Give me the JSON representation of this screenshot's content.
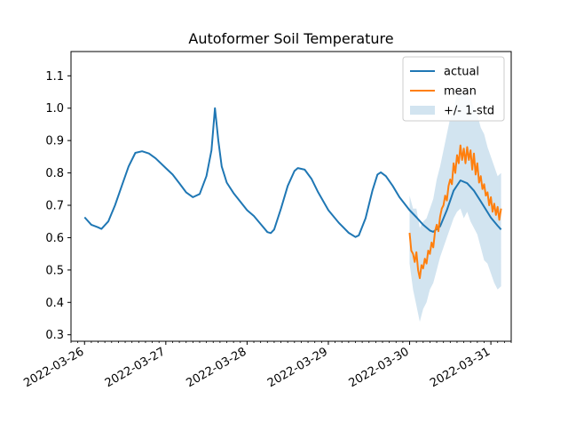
{
  "chart_data": {
    "type": "line",
    "title": "Autoformer Soil Temperature",
    "xlabel": "",
    "ylabel": "",
    "x_axis_type": "date",
    "xlim": [
      "2022-03-25T20:00",
      "2022-03-31T06:00"
    ],
    "ylim": [
      0.28,
      1.175
    ],
    "x_tick_labels": [
      "2022-03-26",
      "2022-03-27",
      "2022-03-28",
      "2022-03-29",
      "2022-03-30",
      "2022-03-31"
    ],
    "y_tick_labels": [
      "0.3",
      "0.4",
      "0.5",
      "0.6",
      "0.7",
      "0.8",
      "0.9",
      "1.0",
      "1.1"
    ],
    "y_ticks": [
      0.3,
      0.4,
      0.5,
      0.6,
      0.7,
      0.8,
      0.9,
      1.0,
      1.1
    ],
    "grid": false,
    "legend_position": "top-right",
    "series": [
      {
        "name": "actual",
        "color": "#1f77b4",
        "points": [
          [
            "2022-03-26T00:00",
            0.663
          ],
          [
            "2022-03-26T02:00",
            0.64
          ],
          [
            "2022-03-26T04:00",
            0.632
          ],
          [
            "2022-03-26T05:00",
            0.627
          ],
          [
            "2022-03-26T07:00",
            0.65
          ],
          [
            "2022-03-26T09:00",
            0.7
          ],
          [
            "2022-03-26T11:00",
            0.76
          ],
          [
            "2022-03-26T13:00",
            0.82
          ],
          [
            "2022-03-26T15:00",
            0.862
          ],
          [
            "2022-03-26T17:00",
            0.867
          ],
          [
            "2022-03-26T19:00",
            0.86
          ],
          [
            "2022-03-26T21:00",
            0.845
          ],
          [
            "2022-03-27T00:00",
            0.815
          ],
          [
            "2022-03-27T02:00",
            0.795
          ],
          [
            "2022-03-27T04:00",
            0.768
          ],
          [
            "2022-03-27T06:00",
            0.74
          ],
          [
            "2022-03-27T08:00",
            0.725
          ],
          [
            "2022-03-27T10:00",
            0.735
          ],
          [
            "2022-03-27T12:00",
            0.79
          ],
          [
            "2022-03-27T13:30",
            0.87
          ],
          [
            "2022-03-27T14:30",
            1.0
          ],
          [
            "2022-03-27T15:30",
            0.9
          ],
          [
            "2022-03-27T16:30",
            0.82
          ],
          [
            "2022-03-27T18:00",
            0.77
          ],
          [
            "2022-03-27T20:00",
            0.738
          ],
          [
            "2022-03-28T00:00",
            0.685
          ],
          [
            "2022-03-28T02:00",
            0.667
          ],
          [
            "2022-03-28T04:00",
            0.642
          ],
          [
            "2022-03-28T06:00",
            0.617
          ],
          [
            "2022-03-28T07:00",
            0.614
          ],
          [
            "2022-03-28T08:00",
            0.625
          ],
          [
            "2022-03-28T10:00",
            0.69
          ],
          [
            "2022-03-28T12:00",
            0.76
          ],
          [
            "2022-03-28T14:00",
            0.806
          ],
          [
            "2022-03-28T15:00",
            0.815
          ],
          [
            "2022-03-28T17:00",
            0.81
          ],
          [
            "2022-03-28T19:00",
            0.782
          ],
          [
            "2022-03-28T21:00",
            0.74
          ],
          [
            "2022-03-29T00:00",
            0.685
          ],
          [
            "2022-03-29T03:00",
            0.647
          ],
          [
            "2022-03-29T06:00",
            0.615
          ],
          [
            "2022-03-29T08:00",
            0.602
          ],
          [
            "2022-03-29T09:00",
            0.607
          ],
          [
            "2022-03-29T11:00",
            0.66
          ],
          [
            "2022-03-29T13:00",
            0.745
          ],
          [
            "2022-03-29T14:30",
            0.795
          ],
          [
            "2022-03-29T15:30",
            0.802
          ],
          [
            "2022-03-29T17:00",
            0.79
          ],
          [
            "2022-03-29T19:00",
            0.76
          ],
          [
            "2022-03-29T21:00",
            0.725
          ],
          [
            "2022-03-30T00:00",
            0.685
          ],
          [
            "2022-03-30T02:00",
            0.663
          ],
          [
            "2022-03-30T04:00",
            0.64
          ],
          [
            "2022-03-30T06:00",
            0.622
          ],
          [
            "2022-03-30T07:00",
            0.618
          ],
          [
            "2022-03-30T09:00",
            0.635
          ],
          [
            "2022-03-30T11:00",
            0.685
          ],
          [
            "2022-03-30T13:00",
            0.745
          ],
          [
            "2022-03-30T15:00",
            0.777
          ],
          [
            "2022-03-30T17:00",
            0.768
          ],
          [
            "2022-03-30T19:00",
            0.745
          ],
          [
            "2022-03-30T21:00",
            0.712
          ],
          [
            "2022-03-31T00:00",
            0.662
          ],
          [
            "2022-03-31T02:00",
            0.637
          ],
          [
            "2022-03-31T03:00",
            0.625
          ]
        ]
      },
      {
        "name": "mean",
        "color": "#ff7f0e",
        "points": [
          [
            "2022-03-30T00:00",
            0.615
          ],
          [
            "2022-03-30T00:30",
            0.56
          ],
          [
            "2022-03-30T01:00",
            0.55
          ],
          [
            "2022-03-30T01:30",
            0.525
          ],
          [
            "2022-03-30T02:00",
            0.555
          ],
          [
            "2022-03-30T02:30",
            0.5
          ],
          [
            "2022-03-30T03:00",
            0.475
          ],
          [
            "2022-03-30T03:30",
            0.515
          ],
          [
            "2022-03-30T04:00",
            0.505
          ],
          [
            "2022-03-30T04:30",
            0.535
          ],
          [
            "2022-03-30T05:00",
            0.52
          ],
          [
            "2022-03-30T05:30",
            0.56
          ],
          [
            "2022-03-30T06:00",
            0.55
          ],
          [
            "2022-03-30T06:30",
            0.585
          ],
          [
            "2022-03-30T07:00",
            0.57
          ],
          [
            "2022-03-30T07:30",
            0.62
          ],
          [
            "2022-03-30T08:00",
            0.64
          ],
          [
            "2022-03-30T08:30",
            0.62
          ],
          [
            "2022-03-30T09:00",
            0.665
          ],
          [
            "2022-03-30T09:30",
            0.69
          ],
          [
            "2022-03-30T10:00",
            0.7
          ],
          [
            "2022-03-30T10:30",
            0.73
          ],
          [
            "2022-03-30T11:00",
            0.715
          ],
          [
            "2022-03-30T11:30",
            0.76
          ],
          [
            "2022-03-30T12:00",
            0.78
          ],
          [
            "2022-03-30T12:30",
            0.765
          ],
          [
            "2022-03-30T13:00",
            0.83
          ],
          [
            "2022-03-30T13:30",
            0.8
          ],
          [
            "2022-03-30T14:00",
            0.855
          ],
          [
            "2022-03-30T14:30",
            0.83
          ],
          [
            "2022-03-30T15:00",
            0.885
          ],
          [
            "2022-03-30T15:30",
            0.84
          ],
          [
            "2022-03-30T16:00",
            0.875
          ],
          [
            "2022-03-30T16:30",
            0.83
          ],
          [
            "2022-03-30T17:00",
            0.88
          ],
          [
            "2022-03-30T17:30",
            0.84
          ],
          [
            "2022-03-30T18:00",
            0.87
          ],
          [
            "2022-03-30T18:30",
            0.81
          ],
          [
            "2022-03-30T19:00",
            0.86
          ],
          [
            "2022-03-30T19:30",
            0.795
          ],
          [
            "2022-03-30T20:00",
            0.83
          ],
          [
            "2022-03-30T20:30",
            0.77
          ],
          [
            "2022-03-30T21:00",
            0.79
          ],
          [
            "2022-03-30T21:30",
            0.75
          ],
          [
            "2022-03-30T22:00",
            0.765
          ],
          [
            "2022-03-30T22:30",
            0.73
          ],
          [
            "2022-03-30T23:00",
            0.74
          ],
          [
            "2022-03-30T23:30",
            0.7
          ],
          [
            "2022-03-31T00:00",
            0.725
          ],
          [
            "2022-03-31T00:30",
            0.68
          ],
          [
            "2022-03-31T01:00",
            0.705
          ],
          [
            "2022-03-31T01:30",
            0.67
          ],
          [
            "2022-03-31T02:00",
            0.695
          ],
          [
            "2022-03-31T02:30",
            0.655
          ],
          [
            "2022-03-31T03:00",
            0.69
          ]
        ]
      },
      {
        "name": "+/- 1-std",
        "color": "#1f77b4",
        "band": true,
        "points": [
          [
            "2022-03-30T00:00",
            0.52,
            0.73
          ],
          [
            "2022-03-30T01:00",
            0.44,
            0.69
          ],
          [
            "2022-03-30T02:00",
            0.39,
            0.69
          ],
          [
            "2022-03-30T03:00",
            0.34,
            0.63
          ],
          [
            "2022-03-30T04:00",
            0.38,
            0.65
          ],
          [
            "2022-03-30T05:00",
            0.4,
            0.66
          ],
          [
            "2022-03-30T06:00",
            0.44,
            0.69
          ],
          [
            "2022-03-30T07:00",
            0.46,
            0.72
          ],
          [
            "2022-03-30T08:00",
            0.5,
            0.78
          ],
          [
            "2022-03-30T09:00",
            0.54,
            0.82
          ],
          [
            "2022-03-30T10:00",
            0.57,
            0.87
          ],
          [
            "2022-03-30T11:00",
            0.6,
            0.92
          ],
          [
            "2022-03-30T12:00",
            0.63,
            0.97
          ],
          [
            "2022-03-30T13:00",
            0.66,
            1.0
          ],
          [
            "2022-03-30T14:00",
            0.68,
            1.04
          ],
          [
            "2022-03-30T15:00",
            0.69,
            1.06
          ],
          [
            "2022-03-30T16:00",
            0.66,
            1.05
          ],
          [
            "2022-03-30T17:00",
            0.68,
            1.04
          ],
          [
            "2022-03-30T18:00",
            0.65,
            1.03
          ],
          [
            "2022-03-30T19:00",
            0.63,
            1.0
          ],
          [
            "2022-03-30T20:00",
            0.61,
            0.98
          ],
          [
            "2022-03-30T21:00",
            0.57,
            0.94
          ],
          [
            "2022-03-30T22:00",
            0.53,
            0.92
          ],
          [
            "2022-03-30T23:00",
            0.52,
            0.88
          ],
          [
            "2022-03-31T00:00",
            0.49,
            0.85
          ],
          [
            "2022-03-31T01:00",
            0.46,
            0.82
          ],
          [
            "2022-03-31T02:00",
            0.44,
            0.79
          ],
          [
            "2022-03-31T03:00",
            0.45,
            0.8
          ]
        ]
      }
    ]
  }
}
